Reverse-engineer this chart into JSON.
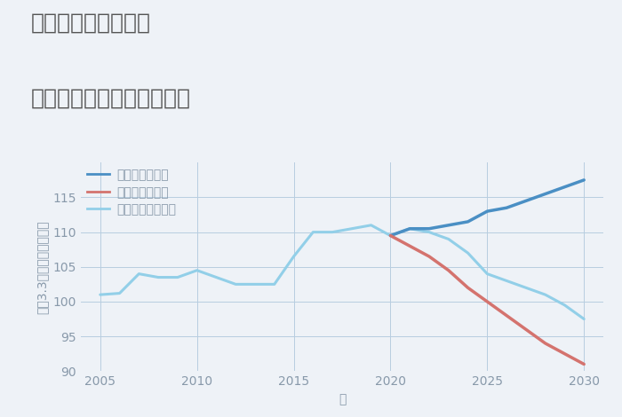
{
  "title_line1": "岐阜県関市西田原の",
  "title_line2": "中古マンションの価格推移",
  "xlabel": "年",
  "ylabel": "平（3.3㎡）単価（万円）",
  "background_color": "#eef2f7",
  "plot_background": "#eef2f7",
  "grid_color": "#b8cde0",
  "ylim": [
    90,
    120
  ],
  "yticks": [
    90,
    95,
    100,
    105,
    110,
    115
  ],
  "xticks": [
    2005,
    2010,
    2015,
    2020,
    2025,
    2030
  ],
  "xlim": [
    2004,
    2031
  ],
  "normal_scenario": {
    "x": [
      2005,
      2006,
      2007,
      2008,
      2009,
      2010,
      2011,
      2012,
      2013,
      2014,
      2015,
      2016,
      2017,
      2018,
      2019,
      2020,
      2021,
      2022,
      2023,
      2024,
      2025,
      2026,
      2027,
      2028,
      2029,
      2030
    ],
    "y": [
      101.0,
      101.2,
      104.0,
      103.5,
      103.5,
      104.5,
      103.5,
      102.5,
      102.5,
      102.5,
      106.5,
      110.0,
      110.0,
      110.5,
      111.0,
      109.5,
      110.5,
      110.0,
      109.0,
      107.0,
      104.0,
      103.0,
      102.0,
      101.0,
      99.5,
      97.5
    ],
    "color": "#92cfe8",
    "linewidth": 2.2,
    "label": "ノーマルシナリオ"
  },
  "good_scenario": {
    "x": [
      2020,
      2021,
      2022,
      2023,
      2024,
      2025,
      2026,
      2027,
      2028,
      2029,
      2030
    ],
    "y": [
      109.5,
      110.5,
      110.5,
      111.0,
      111.5,
      113.0,
      113.5,
      114.5,
      115.5,
      116.5,
      117.5
    ],
    "color": "#4a8fc4",
    "linewidth": 2.5,
    "label": "グッドシナリオ"
  },
  "bad_scenario": {
    "x": [
      2020,
      2021,
      2022,
      2023,
      2024,
      2025,
      2026,
      2027,
      2028,
      2029,
      2030
    ],
    "y": [
      109.5,
      108.0,
      106.5,
      104.5,
      102.0,
      100.0,
      98.0,
      96.0,
      94.0,
      92.5,
      91.0
    ],
    "color": "#d4736e",
    "linewidth": 2.5,
    "label": "バッドシナリオ"
  },
  "title_color": "#555555",
  "axis_color": "#8899aa",
  "tick_color": "#8899aa",
  "title_fontsize": 18,
  "label_fontsize": 10,
  "tick_fontsize": 10,
  "legend_fontsize": 10
}
